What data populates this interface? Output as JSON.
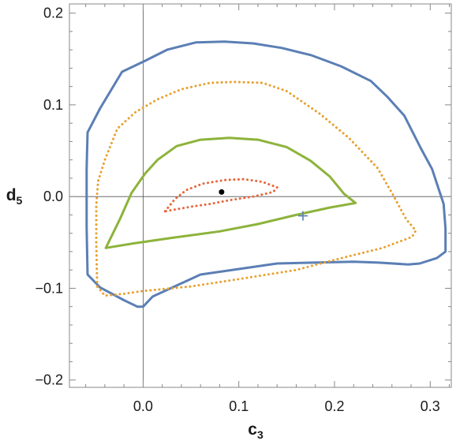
{
  "chart_data": {
    "type": "line",
    "xlabel": {
      "base": "c",
      "sub": "3"
    },
    "ylabel": {
      "base": "d",
      "sub": "5"
    },
    "xlim": [
      -0.077,
      0.322
    ],
    "ylim": [
      -0.208,
      0.21
    ],
    "xticks": [
      0.0,
      0.1,
      0.2,
      0.3
    ],
    "xtick_labels": [
      "0.0",
      "0.1",
      "0.2",
      "0.3"
    ],
    "yticks": [
      -0.2,
      -0.1,
      0.0,
      0.1,
      0.2
    ],
    "ytick_labels": [
      "−0.2",
      "−0.1",
      "0.0",
      "0.1",
      "0.2"
    ],
    "grid": false,
    "reference_lines": {
      "x": 0,
      "y": 0
    },
    "series": [
      {
        "color": "#5b7fb5",
        "dash": "solid",
        "points": [
          [
            0.0,
            -0.12
          ],
          [
            -0.006,
            -0.12
          ],
          [
            -0.02,
            -0.113
          ],
          [
            -0.045,
            -0.099
          ],
          [
            -0.058,
            -0.085
          ],
          [
            -0.059,
            -0.033
          ],
          [
            -0.059,
            0.03
          ],
          [
            -0.058,
            0.07
          ],
          [
            -0.045,
            0.096
          ],
          [
            -0.022,
            0.136
          ],
          [
            0.002,
            0.148
          ],
          [
            0.025,
            0.16
          ],
          [
            0.055,
            0.168
          ],
          [
            0.085,
            0.169
          ],
          [
            0.115,
            0.167
          ],
          [
            0.145,
            0.162
          ],
          [
            0.176,
            0.154
          ],
          [
            0.207,
            0.142
          ],
          [
            0.238,
            0.126
          ],
          [
            0.255,
            0.109
          ],
          [
            0.273,
            0.088
          ],
          [
            0.29,
            0.053
          ],
          [
            0.302,
            0.03
          ],
          [
            0.314,
            -0.008
          ],
          [
            0.316,
            -0.035
          ],
          [
            0.316,
            -0.06
          ],
          [
            0.307,
            -0.067
          ],
          [
            0.289,
            -0.073
          ],
          [
            0.277,
            -0.074
          ],
          [
            0.246,
            -0.072
          ],
          [
            0.22,
            -0.071
          ],
          [
            0.14,
            -0.073
          ],
          [
            0.06,
            -0.085
          ],
          [
            0.01,
            -0.109
          ],
          [
            0.0,
            -0.12
          ]
        ]
      },
      {
        "color": "#e8a030",
        "dash": "dotted",
        "points": [
          [
            -0.048,
            -0.098
          ],
          [
            -0.049,
            -0.05
          ],
          [
            -0.049,
            -0.01
          ],
          [
            -0.047,
            0.017
          ],
          [
            -0.04,
            0.04
          ],
          [
            -0.027,
            0.074
          ],
          [
            -0.008,
            0.092
          ],
          [
            0.015,
            0.106
          ],
          [
            0.04,
            0.117
          ],
          [
            0.07,
            0.124
          ],
          [
            0.095,
            0.125
          ],
          [
            0.125,
            0.124
          ],
          [
            0.15,
            0.115
          ],
          [
            0.185,
            0.09
          ],
          [
            0.215,
            0.064
          ],
          [
            0.245,
            0.031
          ],
          [
            0.26,
            0.004
          ],
          [
            0.275,
            -0.025
          ],
          [
            0.285,
            -0.037
          ],
          [
            0.281,
            -0.044
          ],
          [
            0.25,
            -0.056
          ],
          [
            0.2,
            -0.069
          ],
          [
            0.16,
            -0.08
          ],
          [
            0.1,
            -0.09
          ],
          [
            0.05,
            -0.098
          ],
          [
            0.0,
            -0.103
          ],
          [
            -0.02,
            -0.106
          ],
          [
            -0.04,
            -0.108
          ],
          [
            -0.048,
            -0.098
          ]
        ]
      },
      {
        "color": "#8db33b",
        "dash": "solid",
        "points": [
          [
            -0.039,
            -0.056
          ],
          [
            -0.024,
            -0.024
          ],
          [
            -0.012,
            0.004
          ],
          [
            0.002,
            0.025
          ],
          [
            0.015,
            0.04
          ],
          [
            0.035,
            0.055
          ],
          [
            0.06,
            0.062
          ],
          [
            0.09,
            0.064
          ],
          [
            0.12,
            0.062
          ],
          [
            0.15,
            0.054
          ],
          [
            0.175,
            0.039
          ],
          [
            0.195,
            0.022
          ],
          [
            0.21,
            0.003
          ],
          [
            0.222,
            -0.007
          ],
          [
            0.195,
            -0.012
          ],
          [
            0.16,
            -0.02
          ],
          [
            0.12,
            -0.03
          ],
          [
            0.08,
            -0.038
          ],
          [
            0.03,
            -0.045
          ],
          [
            -0.01,
            -0.051
          ],
          [
            -0.039,
            -0.056
          ]
        ]
      },
      {
        "color": "#e8663a",
        "dash": "dotted",
        "points": [
          [
            0.023,
            -0.016
          ],
          [
            0.033,
            -0.003
          ],
          [
            0.045,
            0.007
          ],
          [
            0.062,
            0.014
          ],
          [
            0.085,
            0.018
          ],
          [
            0.105,
            0.019
          ],
          [
            0.125,
            0.016
          ],
          [
            0.14,
            0.01
          ],
          [
            0.136,
            0.005
          ],
          [
            0.115,
            0.0
          ],
          [
            0.09,
            -0.004
          ],
          [
            0.07,
            -0.008
          ],
          [
            0.05,
            -0.011
          ],
          [
            0.023,
            -0.016
          ]
        ]
      }
    ],
    "markers": [
      {
        "shape": "dot",
        "x": 0.082,
        "y": 0.005,
        "color": "#000000"
      },
      {
        "shape": "plus",
        "x": 0.167,
        "y": -0.021,
        "color": "#5b7fb5"
      }
    ]
  }
}
